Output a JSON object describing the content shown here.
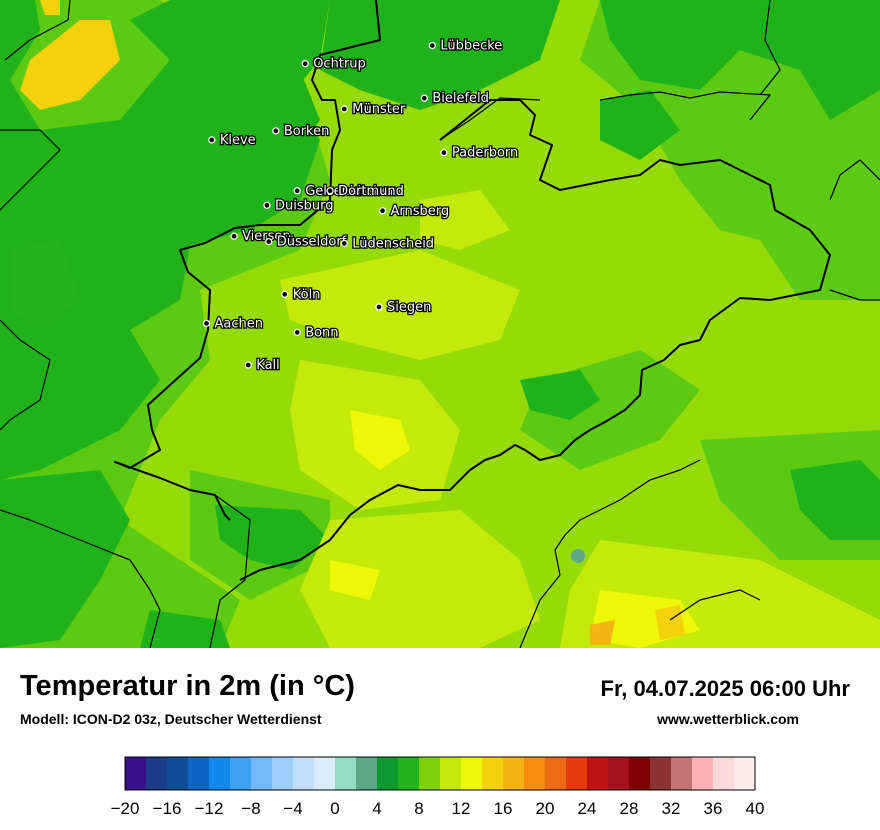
{
  "map": {
    "cities": [
      {
        "name": "Lübbecke",
        "lon": 8.62,
        "lat": 52.31
      },
      {
        "name": "Ochtrup",
        "lon": 7.19,
        "lat": 52.21
      },
      {
        "name": "Bielefeld",
        "lon": 8.53,
        "lat": 52.02
      },
      {
        "name": "Münster",
        "lon": 7.63,
        "lat": 51.96
      },
      {
        "name": "Borken",
        "lon": 6.86,
        "lat": 51.84
      },
      {
        "name": "Kleve",
        "lon": 6.14,
        "lat": 51.79
      },
      {
        "name": "Paderborn",
        "lon": 8.75,
        "lat": 51.72
      },
      {
        "name": "Gelsenkirchen",
        "lon": 7.1,
        "lat": 51.51
      },
      {
        "name": "Dortmund",
        "lon": 7.47,
        "lat": 51.51
      },
      {
        "name": "Duisburg",
        "lon": 6.76,
        "lat": 51.43
      },
      {
        "name": "Arnsberg",
        "lon": 8.06,
        "lat": 51.4
      },
      {
        "name": "Viersen",
        "lon": 6.39,
        "lat": 51.26
      },
      {
        "name": "Düsseldorf",
        "lon": 6.78,
        "lat": 51.23
      },
      {
        "name": "Lüdenscheid",
        "lon": 7.63,
        "lat": 51.22
      },
      {
        "name": "Köln",
        "lon": 6.96,
        "lat": 50.94
      },
      {
        "name": "Siegen",
        "lon": 8.02,
        "lat": 50.87
      },
      {
        "name": "Aachen",
        "lon": 6.08,
        "lat": 50.78
      },
      {
        "name": "Bonn",
        "lon": 7.1,
        "lat": 50.73
      },
      {
        "name": "Kall",
        "lon": 6.55,
        "lat": 50.55
      }
    ]
  },
  "footer": {
    "title": "Temperatur in 2m (in °C)",
    "model": "Modell: ICON-D2 03z, Deutscher Wetterdienst",
    "datetime": "Fr, 04.07.2025 06:00 Uhr",
    "website": "www.wetterblick.com"
  },
  "colorbar": {
    "unit": "°C",
    "min": -20,
    "max": 40,
    "step": 2,
    "tick_labels": [
      "−20",
      "−16",
      "−12",
      "−8",
      "−4",
      "0",
      "4",
      "8",
      "12",
      "16",
      "20",
      "24",
      "28",
      "32",
      "36",
      "40"
    ],
    "colors": [
      "#3a0f8c",
      "#1a3c8a",
      "#0f4e94",
      "#0d66c2",
      "#1389ee",
      "#3ea2f7",
      "#72b9fa",
      "#9ccdfb",
      "#c1dffc",
      "#d9ebfd",
      "#94dcc3",
      "#5ca98a",
      "#0d9a30",
      "#22b41a",
      "#7fd20a",
      "#c4e809",
      "#eef806",
      "#f3d20b",
      "#f4b414",
      "#f48b12",
      "#ee6b14",
      "#e83a0f",
      "#c01212",
      "#a8121c",
      "#7e0404",
      "#8c3232",
      "#c47676",
      "#fcb2b2",
      "#fddada",
      "#fcebeb"
    ]
  },
  "colors": {
    "dark_green": "#1fb21b",
    "mid_green": "#5cc912",
    "light_green": "#95db0a",
    "yellow_green": "#c3ea08",
    "yellow": "#eef806",
    "gold": "#f3d20b",
    "orange_yellow": "#f4b414"
  }
}
